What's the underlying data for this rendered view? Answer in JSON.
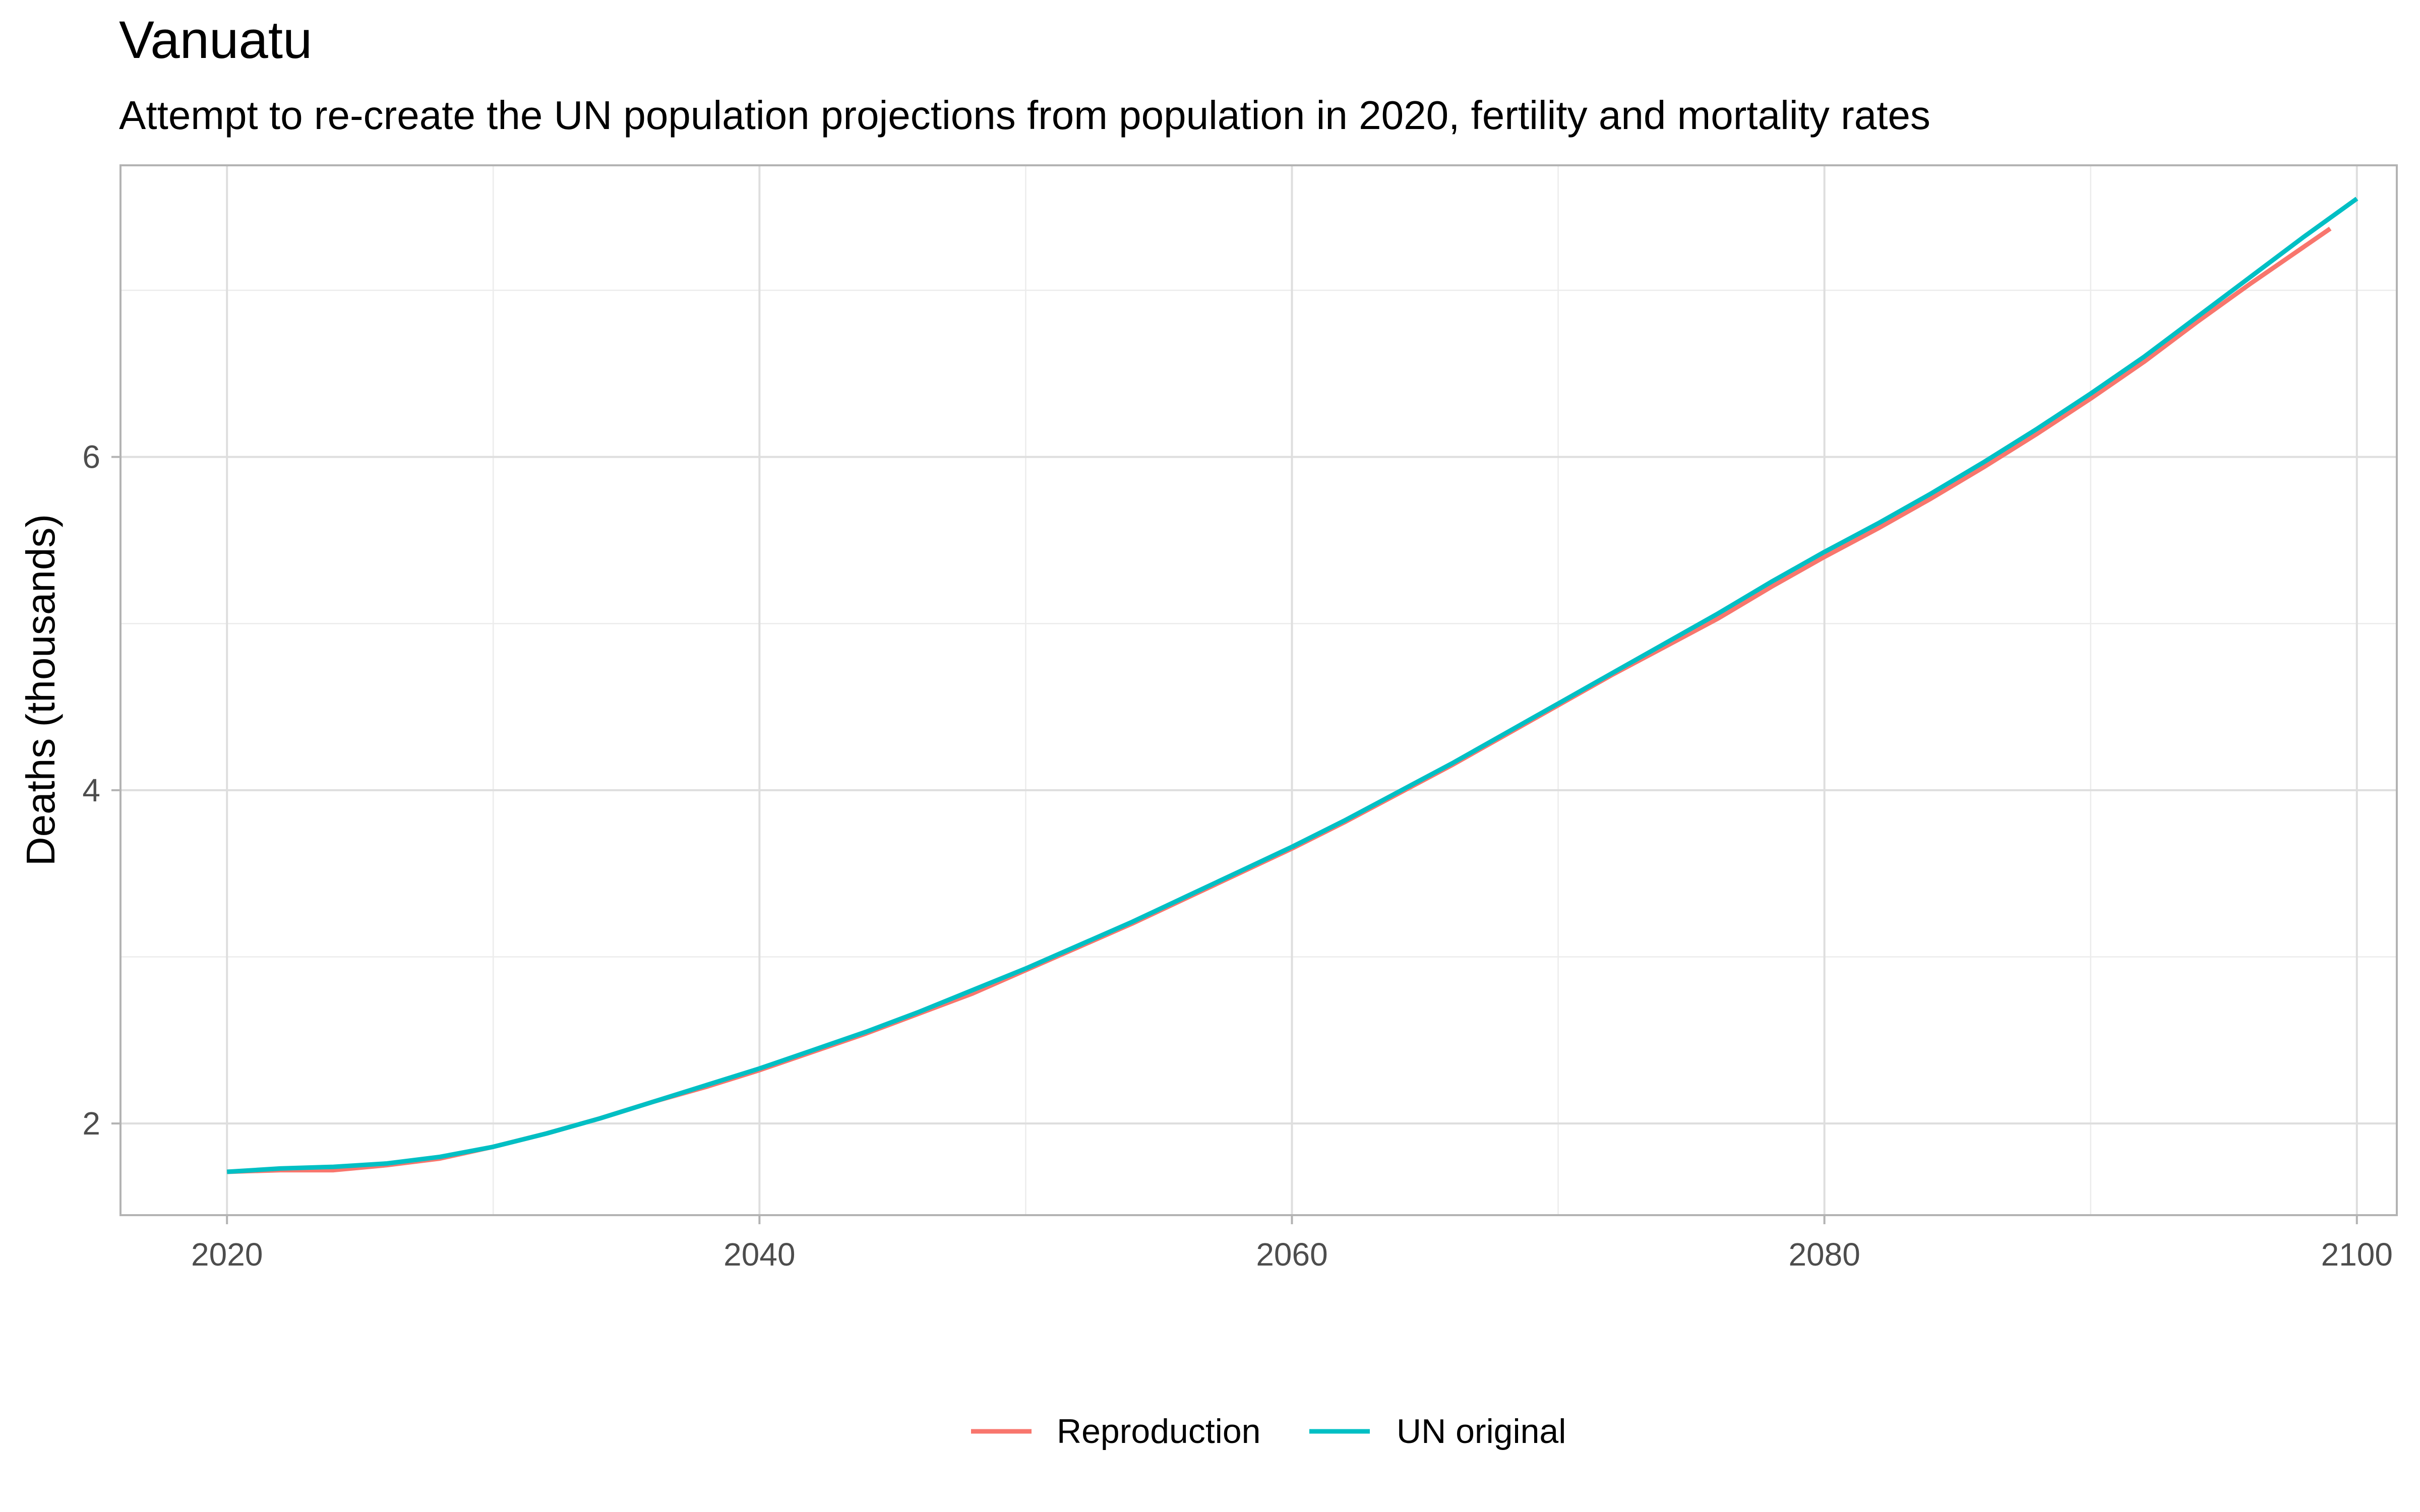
{
  "chart_data": {
    "type": "line",
    "title": "Vanuatu",
    "subtitle": "Attempt to re-create the UN population projections from population in 2020, fertility and mortality rates",
    "xlabel": "",
    "ylabel": "Deaths (thousands)",
    "xlim": [
      2016,
      2101.5
    ],
    "ylim": [
      1.45,
      7.75
    ],
    "x_ticks": [
      2020,
      2040,
      2060,
      2080,
      2100
    ],
    "y_ticks": [
      2,
      4,
      6
    ],
    "grid": true,
    "legend_position": "bottom",
    "series": [
      {
        "name": "Reproduction",
        "color": "#F8766D",
        "x": [
          2020,
          2022,
          2024,
          2026,
          2028,
          2030,
          2032,
          2034,
          2036,
          2038,
          2040,
          2042,
          2044,
          2046,
          2048,
          2050,
          2052,
          2054,
          2056,
          2058,
          2060,
          2062,
          2064,
          2066,
          2068,
          2070,
          2072,
          2074,
          2076,
          2078,
          2080,
          2082,
          2084,
          2086,
          2088,
          2090,
          2092,
          2094,
          2096,
          2098,
          2099
        ],
        "y": [
          1.71,
          1.72,
          1.72,
          1.75,
          1.79,
          1.86,
          1.94,
          2.03,
          2.13,
          2.22,
          2.32,
          2.43,
          2.54,
          2.66,
          2.78,
          2.92,
          3.06,
          3.2,
          3.35,
          3.5,
          3.65,
          3.81,
          3.98,
          4.15,
          4.33,
          4.51,
          4.69,
          4.86,
          5.03,
          5.22,
          5.4,
          5.57,
          5.75,
          5.94,
          6.14,
          6.35,
          6.57,
          6.81,
          7.04,
          7.26,
          7.37
        ]
      },
      {
        "name": "UN original",
        "color": "#00BFC4",
        "x": [
          2020,
          2022,
          2024,
          2026,
          2028,
          2030,
          2032,
          2034,
          2036,
          2038,
          2040,
          2042,
          2044,
          2046,
          2048,
          2050,
          2052,
          2054,
          2056,
          2058,
          2060,
          2062,
          2064,
          2066,
          2068,
          2070,
          2072,
          2074,
          2076,
          2078,
          2080,
          2082,
          2084,
          2086,
          2088,
          2090,
          2092,
          2094,
          2096,
          2098,
          2100
        ],
        "y": [
          1.71,
          1.73,
          1.74,
          1.76,
          1.8,
          1.86,
          1.94,
          2.03,
          2.13,
          2.23,
          2.33,
          2.44,
          2.55,
          2.67,
          2.8,
          2.93,
          3.07,
          3.21,
          3.36,
          3.51,
          3.66,
          3.82,
          3.99,
          4.16,
          4.34,
          4.52,
          4.7,
          4.88,
          5.06,
          5.25,
          5.43,
          5.6,
          5.78,
          5.97,
          6.17,
          6.38,
          6.6,
          6.84,
          7.08,
          7.32,
          7.55
        ]
      }
    ]
  }
}
